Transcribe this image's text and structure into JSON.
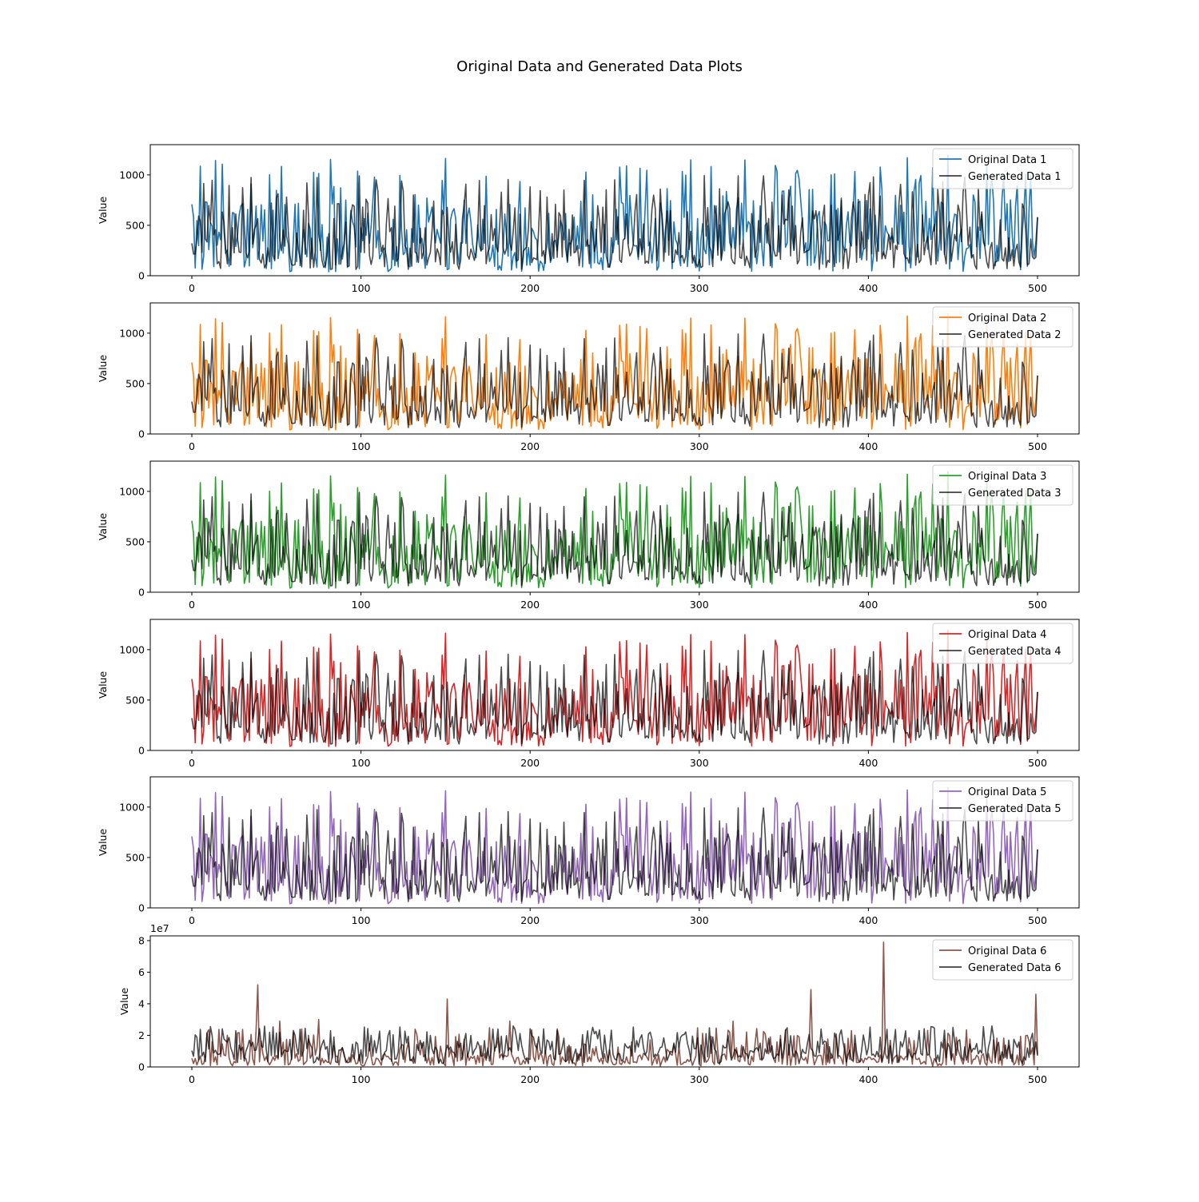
{
  "title": "Original Data and Generated Data Plots",
  "colors": {
    "original": [
      "#1f77b4",
      "#ff7f0e",
      "#2ca02c",
      "#d62728",
      "#9467bd",
      "#8c564b"
    ],
    "generated": "#000000"
  },
  "chart_data": [
    {
      "type": "line",
      "ylabel": "Value",
      "xlim": [
        0,
        500
      ],
      "ylim": [
        0,
        1300
      ],
      "xticks": [
        "0",
        "100",
        "200",
        "300",
        "400",
        "500"
      ],
      "yticks": [
        "0",
        "500",
        "1000"
      ],
      "ytick_values": [
        0,
        500,
        1000
      ],
      "legend_position": "upper right",
      "series": [
        {
          "name": "Original Data 1",
          "color": "#1f77b4"
        },
        {
          "name": "Generated Data 1",
          "color": "#000000"
        }
      ]
    },
    {
      "type": "line",
      "ylabel": "Value",
      "xlim": [
        0,
        500
      ],
      "ylim": [
        0,
        1300
      ],
      "xticks": [
        "0",
        "100",
        "200",
        "300",
        "400",
        "500"
      ],
      "yticks": [
        "0",
        "500",
        "1000"
      ],
      "ytick_values": [
        0,
        500,
        1000
      ],
      "legend_position": "upper right",
      "series": [
        {
          "name": "Original Data 2",
          "color": "#ff7f0e"
        },
        {
          "name": "Generated Data 2",
          "color": "#000000"
        }
      ]
    },
    {
      "type": "line",
      "ylabel": "Value",
      "xlim": [
        0,
        500
      ],
      "ylim": [
        0,
        1300
      ],
      "xticks": [
        "0",
        "100",
        "200",
        "300",
        "400",
        "500"
      ],
      "yticks": [
        "0",
        "500",
        "1000"
      ],
      "ytick_values": [
        0,
        500,
        1000
      ],
      "legend_position": "upper right",
      "series": [
        {
          "name": "Original Data 3",
          "color": "#2ca02c"
        },
        {
          "name": "Generated Data 3",
          "color": "#000000"
        }
      ]
    },
    {
      "type": "line",
      "ylabel": "Value",
      "xlim": [
        0,
        500
      ],
      "ylim": [
        0,
        1300
      ],
      "xticks": [
        "0",
        "100",
        "200",
        "300",
        "400",
        "500"
      ],
      "yticks": [
        "0",
        "500",
        "1000"
      ],
      "ytick_values": [
        0,
        500,
        1000
      ],
      "legend_position": "upper right",
      "series": [
        {
          "name": "Original Data 4",
          "color": "#d62728"
        },
        {
          "name": "Generated Data 4",
          "color": "#000000"
        }
      ]
    },
    {
      "type": "line",
      "ylabel": "Value",
      "xlim": [
        0,
        500
      ],
      "ylim": [
        0,
        1300
      ],
      "xticks": [
        "0",
        "100",
        "200",
        "300",
        "400",
        "500"
      ],
      "yticks": [
        "0",
        "500",
        "1000"
      ],
      "ytick_values": [
        0,
        500,
        1000
      ],
      "legend_position": "upper right",
      "series": [
        {
          "name": "Original Data 5",
          "color": "#9467bd"
        },
        {
          "name": "Generated Data 5",
          "color": "#000000"
        }
      ]
    },
    {
      "type": "line",
      "ylabel": "Value",
      "xlim": [
        0,
        500
      ],
      "ylim": [
        0,
        8.3
      ],
      "offset_text": "1e7",
      "xticks": [
        "0",
        "100",
        "200",
        "300",
        "400",
        "500"
      ],
      "yticks": [
        "0",
        "2",
        "4",
        "6",
        "8"
      ],
      "ytick_values": [
        0,
        2,
        4,
        6,
        8
      ],
      "legend_position": "upper right",
      "series": [
        {
          "name": "Original Data 6",
          "color": "#8c564b"
        },
        {
          "name": "Generated Data 6",
          "color": "#000000"
        }
      ]
    }
  ]
}
